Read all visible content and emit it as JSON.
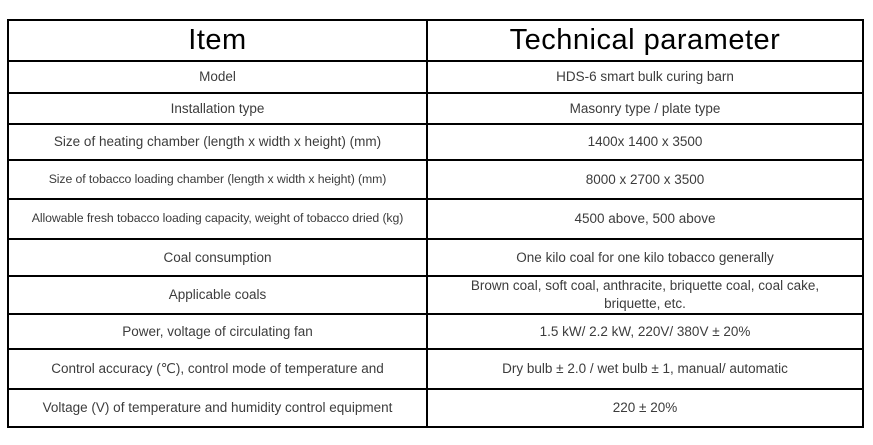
{
  "table": {
    "header": {
      "item": "Item",
      "parameter": "Technical parameter"
    },
    "rows": [
      {
        "item": "Model",
        "value": "HDS-6 smart bulk curing barn"
      },
      {
        "item": "Installation type",
        "value": "Masonry type / plate type"
      },
      {
        "item": "Size of heating chamber (length x width x height) (mm)",
        "value": "1400x 1400 x 3500"
      },
      {
        "item": "Size of tobacco loading chamber (length x width x height) (mm)",
        "value": "8000 x 2700 x 3500"
      },
      {
        "item": "Allowable fresh tobacco loading capacity, weight of tobacco dried (kg)",
        "value": "4500 above, 500 above"
      },
      {
        "item": "Coal consumption",
        "value": "One kilo coal for one kilo tobacco generally"
      },
      {
        "item": "Applicable coals",
        "value": "Brown coal, soft coal, anthracite, briquette coal, coal cake, briquette, etc."
      },
      {
        "item": "Power, voltage of circulating fan",
        "value": "1.5 kW/ 2.2 kW, 220V/ 380V ± 20%"
      },
      {
        "item": "Control accuracy (℃), control mode of temperature and",
        "value": "Dry bulb ± 2.0 / wet bulb ± 1, manual/ automatic"
      },
      {
        "item": "Voltage (V) of temperature and humidity control equipment",
        "value": "220 ± 20%"
      }
    ]
  },
  "colors": {
    "border": "#000000",
    "background": "#ffffff",
    "text": "#3c3c3c",
    "header_text": "#000000"
  }
}
